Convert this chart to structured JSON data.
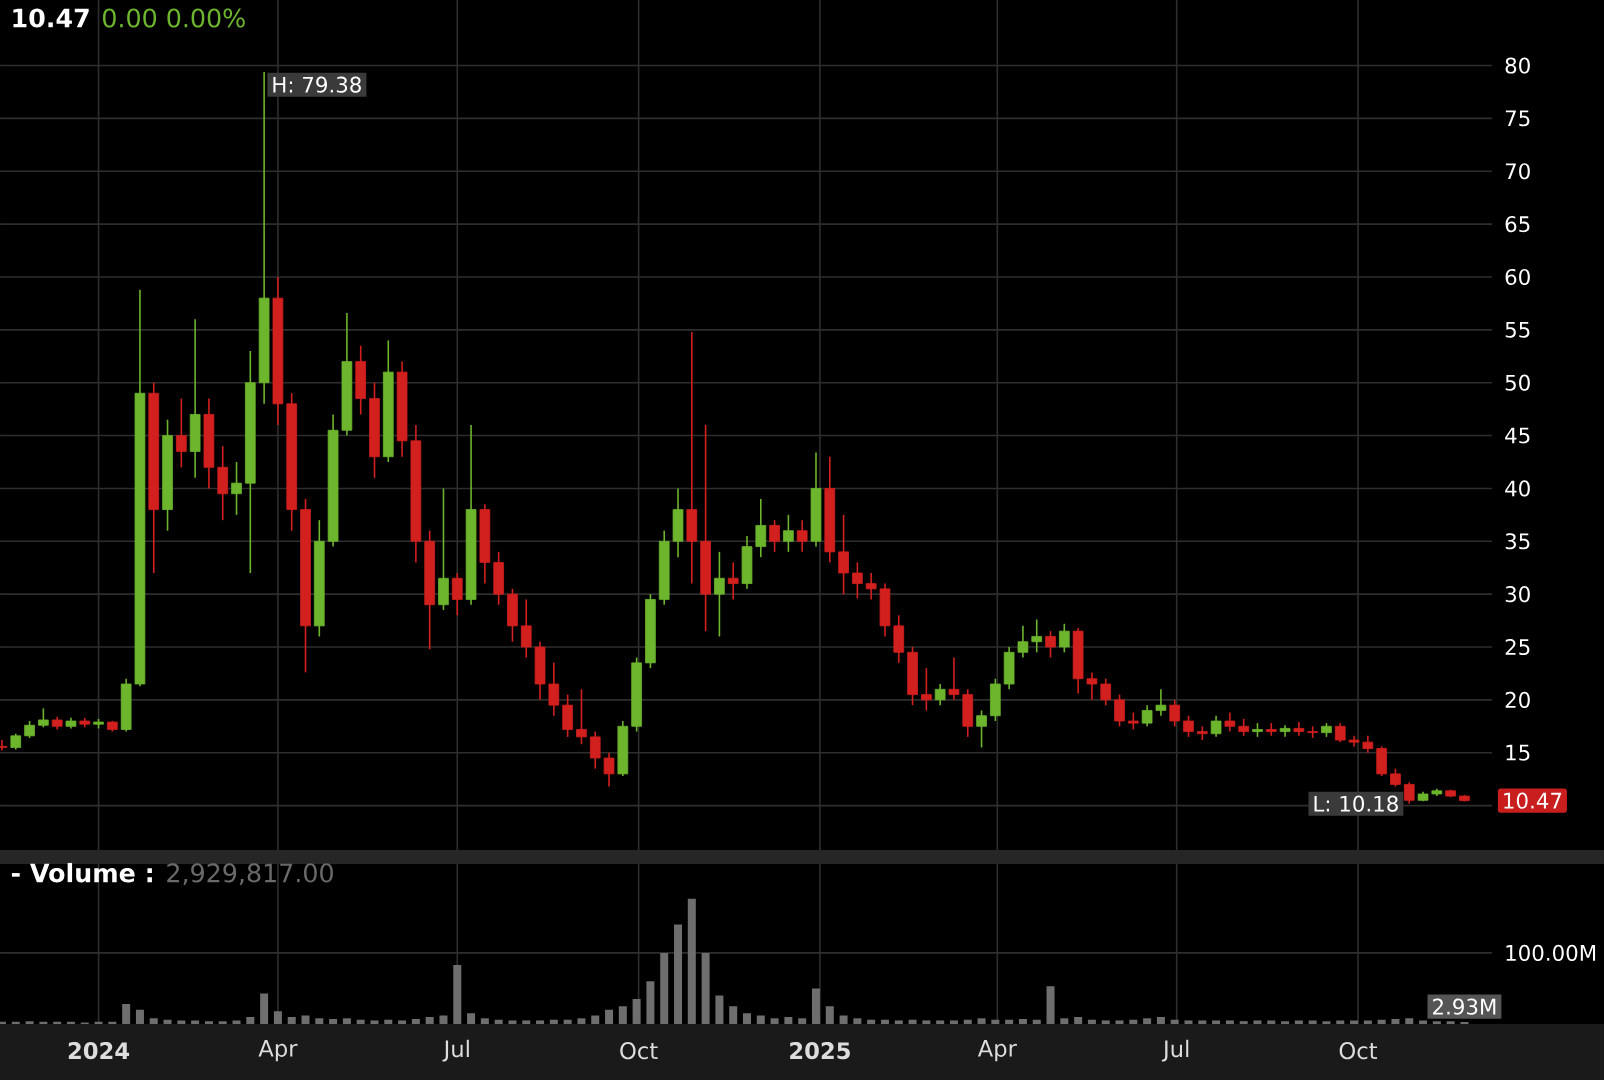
{
  "chart_data": [
    {
      "type": "candlestick",
      "title": "10.47",
      "subtitle": "0.00 0.00%",
      "x": [
        "2023-11-13",
        "2023-11-20",
        "2023-11-27",
        "2023-12-04",
        "2023-12-11",
        "2023-12-18",
        "2023-12-25",
        "2024-01-01",
        "2024-01-08",
        "2024-01-15",
        "2024-01-22",
        "2024-01-29",
        "2024-02-05",
        "2024-02-12",
        "2024-02-19",
        "2024-02-26",
        "2024-03-04",
        "2024-03-11",
        "2024-03-18",
        "2024-03-25",
        "2024-04-01",
        "2024-04-08",
        "2024-04-15",
        "2024-04-22",
        "2024-04-29",
        "2024-05-06",
        "2024-05-13",
        "2024-05-20",
        "2024-05-27",
        "2024-06-03",
        "2024-06-10",
        "2024-06-17",
        "2024-06-24",
        "2024-07-01",
        "2024-07-08",
        "2024-07-15",
        "2024-07-22",
        "2024-07-29",
        "2024-08-05",
        "2024-08-12",
        "2024-08-19",
        "2024-08-26",
        "2024-09-02",
        "2024-09-09",
        "2024-09-16",
        "2024-09-23",
        "2024-09-30",
        "2024-10-07",
        "2024-10-14",
        "2024-10-21",
        "2024-10-28",
        "2024-11-04",
        "2024-11-11",
        "2024-11-18",
        "2024-11-25",
        "2024-12-02",
        "2024-12-09",
        "2024-12-16",
        "2024-12-23",
        "2024-12-30",
        "2025-01-06",
        "2025-01-13",
        "2025-01-20",
        "2025-01-27",
        "2025-02-03",
        "2025-02-10",
        "2025-02-17",
        "2025-02-24",
        "2025-03-03",
        "2025-03-10",
        "2025-03-17",
        "2025-03-24",
        "2025-03-31",
        "2025-04-07",
        "2025-04-14",
        "2025-04-21",
        "2025-04-28",
        "2025-05-05",
        "2025-05-12",
        "2025-05-19",
        "2025-05-26",
        "2025-06-02",
        "2025-06-09",
        "2025-06-16",
        "2025-06-23",
        "2025-06-30",
        "2025-07-07",
        "2025-07-14",
        "2025-07-21",
        "2025-07-28",
        "2025-08-04",
        "2025-08-11",
        "2025-08-18",
        "2025-08-25",
        "2025-09-01",
        "2025-09-08",
        "2025-09-15",
        "2025-09-22",
        "2025-09-29",
        "2025-10-06",
        "2025-10-13",
        "2025-10-20",
        "2025-10-27",
        "2025-11-03",
        "2025-11-10",
        "2025-11-17",
        "2025-11-24"
      ],
      "ohlc": [
        [
          15.6,
          16.2,
          15.2,
          15.5
        ],
        [
          15.5,
          16.8,
          15.3,
          16.6
        ],
        [
          16.6,
          18.0,
          16.4,
          17.6
        ],
        [
          17.6,
          19.2,
          17.4,
          18.1
        ],
        [
          18.1,
          18.4,
          17.2,
          17.5
        ],
        [
          17.5,
          18.3,
          17.3,
          18.0
        ],
        [
          18.0,
          18.3,
          17.4,
          17.7
        ],
        [
          17.7,
          18.2,
          17.3,
          17.9
        ],
        [
          17.9,
          18.0,
          17.0,
          17.2
        ],
        [
          17.2,
          22.0,
          17.0,
          21.5
        ],
        [
          21.5,
          58.8,
          21.3,
          49.0
        ],
        [
          49.0,
          50.0,
          32.0,
          38.0
        ],
        [
          38.0,
          46.5,
          36.0,
          45.0
        ],
        [
          45.0,
          48.5,
          42.0,
          43.5
        ],
        [
          43.5,
          56.0,
          41.0,
          47.0
        ],
        [
          47.0,
          48.5,
          40.0,
          42.0
        ],
        [
          42.0,
          44.0,
          37.0,
          39.5
        ],
        [
          39.5,
          42.5,
          37.5,
          40.5
        ],
        [
          40.5,
          53.0,
          32.0,
          50.0
        ],
        [
          50.0,
          79.38,
          48.0,
          58.0
        ],
        [
          58.0,
          60.0,
          46.0,
          48.0
        ],
        [
          48.0,
          49.0,
          36.0,
          38.0
        ],
        [
          38.0,
          39.0,
          22.6,
          27.0
        ],
        [
          27.0,
          37.0,
          26.0,
          35.0
        ],
        [
          35.0,
          47.0,
          34.5,
          45.5
        ],
        [
          45.5,
          56.6,
          45.0,
          52.0
        ],
        [
          52.0,
          53.5,
          47.0,
          48.5
        ],
        [
          48.5,
          50.0,
          41.0,
          43.0
        ],
        [
          43.0,
          54.0,
          42.5,
          51.0
        ],
        [
          51.0,
          52.0,
          43.0,
          44.5
        ],
        [
          44.5,
          46.0,
          33.0,
          35.0
        ],
        [
          35.0,
          36.0,
          24.8,
          29.0
        ],
        [
          29.0,
          40.0,
          28.5,
          31.5
        ],
        [
          31.5,
          32.0,
          28.0,
          29.5
        ],
        [
          29.5,
          46.0,
          29.0,
          38.0
        ],
        [
          38.0,
          38.5,
          31.0,
          33.0
        ],
        [
          33.0,
          34.0,
          29.0,
          30.0
        ],
        [
          30.0,
          30.5,
          25.5,
          27.0
        ],
        [
          27.0,
          29.5,
          24.0,
          25.0
        ],
        [
          25.0,
          25.5,
          20.0,
          21.5
        ],
        [
          21.5,
          23.5,
          18.5,
          19.5
        ],
        [
          19.5,
          20.5,
          16.5,
          17.2
        ],
        [
          17.2,
          21.0,
          15.8,
          16.5
        ],
        [
          16.5,
          17.0,
          13.5,
          14.5
        ],
        [
          14.5,
          15.0,
          11.8,
          13.0
        ],
        [
          13.0,
          18.0,
          12.8,
          17.5
        ],
        [
          17.5,
          24.0,
          17.0,
          23.5
        ],
        [
          23.5,
          30.0,
          23.0,
          29.5
        ],
        [
          29.5,
          36.0,
          29.0,
          35.0
        ],
        [
          35.0,
          40.0,
          33.5,
          38.0
        ],
        [
          38.0,
          54.8,
          31.0,
          35.0
        ],
        [
          35.0,
          46.0,
          26.5,
          30.0
        ],
        [
          30.0,
          34.0,
          26.0,
          31.5
        ],
        [
          31.5,
          33.0,
          29.5,
          31.0
        ],
        [
          31.0,
          35.5,
          30.5,
          34.5
        ],
        [
          34.5,
          39.0,
          33.5,
          36.5
        ],
        [
          36.5,
          37.0,
          34.0,
          35.0
        ],
        [
          35.0,
          37.5,
          34.0,
          36.0
        ],
        [
          36.0,
          37.0,
          34.0,
          35.0
        ],
        [
          35.0,
          43.4,
          34.5,
          40.0
        ],
        [
          40.0,
          43.0,
          33.0,
          34.0
        ],
        [
          34.0,
          37.5,
          30.0,
          32.0
        ],
        [
          32.0,
          33.0,
          29.6,
          31.0
        ],
        [
          31.0,
          32.0,
          29.5,
          30.5
        ],
        [
          30.5,
          31.0,
          26.0,
          27.0
        ],
        [
          27.0,
          28.0,
          23.5,
          24.5
        ],
        [
          24.5,
          25.0,
          19.5,
          20.5
        ],
        [
          20.5,
          23.0,
          19.0,
          20.0
        ],
        [
          20.0,
          21.5,
          19.5,
          21.0
        ],
        [
          21.0,
          24.0,
          20.0,
          20.5
        ],
        [
          20.5,
          21.0,
          16.5,
          17.5
        ],
        [
          17.5,
          19.0,
          15.5,
          18.5
        ],
        [
          18.5,
          22.0,
          18.0,
          21.5
        ],
        [
          21.5,
          25.0,
          21.0,
          24.5
        ],
        [
          24.5,
          27.0,
          24.0,
          25.5
        ],
        [
          25.5,
          27.6,
          24.5,
          26.0
        ],
        [
          26.0,
          26.5,
          24.0,
          25.0
        ],
        [
          25.0,
          27.2,
          24.5,
          26.5
        ],
        [
          26.5,
          26.8,
          20.6,
          22.0
        ],
        [
          22.0,
          22.6,
          20.0,
          21.5
        ],
        [
          21.5,
          22.0,
          19.5,
          20.0
        ],
        [
          20.0,
          20.5,
          17.5,
          18.0
        ],
        [
          18.0,
          18.8,
          17.2,
          17.8
        ],
        [
          17.8,
          19.5,
          17.5,
          19.0
        ],
        [
          19.0,
          21.0,
          18.5,
          19.5
        ],
        [
          19.5,
          20.0,
          17.5,
          18.0
        ],
        [
          18.0,
          18.5,
          16.5,
          17.0
        ],
        [
          17.0,
          17.5,
          16.2,
          16.8
        ],
        [
          16.8,
          18.5,
          16.5,
          18.0
        ],
        [
          18.0,
          18.8,
          17.0,
          17.5
        ],
        [
          17.5,
          18.2,
          16.6,
          17.0
        ],
        [
          17.0,
          17.8,
          16.5,
          17.2
        ],
        [
          17.2,
          17.8,
          16.6,
          17.0
        ],
        [
          17.0,
          17.6,
          16.5,
          17.3
        ],
        [
          17.3,
          17.9,
          16.6,
          17.0
        ],
        [
          17.0,
          17.5,
          16.4,
          16.9
        ],
        [
          16.9,
          17.8,
          16.5,
          17.5
        ],
        [
          17.5,
          17.8,
          16.0,
          16.2
        ],
        [
          16.2,
          16.6,
          15.6,
          16.0
        ],
        [
          16.0,
          16.6,
          15.0,
          15.4
        ],
        [
          15.4,
          15.6,
          12.8,
          13.0
        ],
        [
          13.0,
          13.5,
          11.8,
          12.0
        ],
        [
          12.0,
          12.2,
          10.18,
          10.5
        ],
        [
          10.5,
          11.3,
          10.4,
          11.1
        ],
        [
          11.1,
          11.6,
          10.9,
          11.4
        ],
        [
          11.4,
          11.5,
          10.8,
          10.9
        ],
        [
          10.9,
          11.0,
          10.4,
          10.47
        ]
      ],
      "colors": [
        "#d2201e",
        "#6cb52d",
        "#6cb52d",
        "#6cb52d",
        "#d2201e",
        "#6cb52d",
        "#d2201e",
        "#6cb52d",
        "#d2201e",
        "#6cb52d",
        "#6cb52d",
        "#d2201e",
        "#6cb52d",
        "#d2201e",
        "#6cb52d",
        "#d2201e",
        "#d2201e",
        "#6cb52d",
        "#6cb52d",
        "#6cb52d",
        "#d2201e",
        "#d2201e",
        "#d2201e",
        "#6cb52d",
        "#6cb52d",
        "#6cb52d",
        "#d2201e",
        "#d2201e",
        "#6cb52d",
        "#d2201e",
        "#d2201e",
        "#d2201e",
        "#6cb52d",
        "#d2201e",
        "#6cb52d",
        "#d2201e",
        "#d2201e",
        "#d2201e",
        "#d2201e",
        "#d2201e",
        "#d2201e",
        "#d2201e",
        "#d2201e",
        "#d2201e",
        "#d2201e",
        "#6cb52d",
        "#6cb52d",
        "#6cb52d",
        "#6cb52d",
        "#6cb52d",
        "#d2201e",
        "#d2201e",
        "#6cb52d",
        "#d2201e",
        "#6cb52d",
        "#6cb52d",
        "#d2201e",
        "#6cb52d",
        "#d2201e",
        "#6cb52d",
        "#d2201e",
        "#d2201e",
        "#d2201e",
        "#d2201e",
        "#d2201e",
        "#d2201e",
        "#d2201e",
        "#d2201e",
        "#6cb52d",
        "#d2201e",
        "#d2201e",
        "#6cb52d",
        "#6cb52d",
        "#6cb52d",
        "#6cb52d",
        "#6cb52d",
        "#d2201e",
        "#6cb52d",
        "#d2201e",
        "#d2201e",
        "#d2201e",
        "#d2201e",
        "#d2201e",
        "#6cb52d",
        "#6cb52d",
        "#d2201e",
        "#d2201e",
        "#d2201e",
        "#6cb52d",
        "#d2201e",
        "#d2201e",
        "#6cb52d",
        "#d2201e",
        "#6cb52d",
        "#d2201e",
        "#d2201e",
        "#6cb52d",
        "#d2201e",
        "#d2201e",
        "#d2201e",
        "#d2201e",
        "#d2201e",
        "#d2201e",
        "#6cb52d",
        "#6cb52d",
        "#d2201e",
        "#d2201e"
      ],
      "xlim": [
        "2023-11-12",
        "2025-12-08"
      ],
      "xticks": [
        {
          "value": "2024-01-01",
          "label": null
        },
        {
          "value": "2024-04-01",
          "label": null
        },
        {
          "value": "2024-07-01",
          "label": null
        },
        {
          "value": "2024-10-01",
          "label": null
        },
        {
          "value": "2025-01-01",
          "label": null
        },
        {
          "value": "2025-04-01",
          "label": null
        },
        {
          "value": "2025-07-01",
          "label": null
        },
        {
          "value": "2025-10-01",
          "label": null
        }
      ],
      "ylim": [
        5.8,
        86.2
      ],
      "yticks": [
        {
          "value": 10,
          "label": null
        },
        15,
        20,
        25,
        30,
        35,
        40,
        45,
        50,
        55,
        60,
        65,
        70,
        75,
        80
      ],
      "tick_labels": "y",
      "grid": true,
      "annotations": [
        {
          "text": "H: 79.38",
          "x": "2024-03-25",
          "y": 79.38
        },
        {
          "text": "L: 10.18",
          "x": "2025-10-27",
          "y": 10.18
        },
        {
          "text": "10.47",
          "x": "2025-11-24",
          "y": 10.47
        }
      ]
    },
    {
      "type": "bar",
      "title": "- Volume :",
      "subtitle": "2,929,817.00",
      "color": "#6e6e6e",
      "x": [
        "2023-11-13",
        "2023-11-20",
        "2023-11-27",
        "2023-12-04",
        "2023-12-11",
        "2023-12-18",
        "2023-12-25",
        "2024-01-01",
        "2024-01-08",
        "2024-01-15",
        "2024-01-22",
        "2024-01-29",
        "2024-02-05",
        "2024-02-12",
        "2024-02-19",
        "2024-02-26",
        "2024-03-04",
        "2024-03-11",
        "2024-03-18",
        "2024-03-25",
        "2024-04-01",
        "2024-04-08",
        "2024-04-15",
        "2024-04-22",
        "2024-04-29",
        "2024-05-06",
        "2024-05-13",
        "2024-05-20",
        "2024-05-27",
        "2024-06-03",
        "2024-06-10",
        "2024-06-17",
        "2024-06-24",
        "2024-07-01",
        "2024-07-08",
        "2024-07-15",
        "2024-07-22",
        "2024-07-29",
        "2024-08-05",
        "2024-08-12",
        "2024-08-19",
        "2024-08-26",
        "2024-09-02",
        "2024-09-09",
        "2024-09-16",
        "2024-09-23",
        "2024-09-30",
        "2024-10-07",
        "2024-10-14",
        "2024-10-21",
        "2024-10-28",
        "2024-11-04",
        "2024-11-11",
        "2024-11-18",
        "2024-11-25",
        "2024-12-02",
        "2024-12-09",
        "2024-12-16",
        "2024-12-23",
        "2024-12-30",
        "2025-01-06",
        "2025-01-13",
        "2025-01-20",
        "2025-01-27",
        "2025-02-03",
        "2025-02-10",
        "2025-02-17",
        "2025-02-24",
        "2025-03-03",
        "2025-03-10",
        "2025-03-17",
        "2025-03-24",
        "2025-03-31",
        "2025-04-07",
        "2025-04-14",
        "2025-04-21",
        "2025-04-28",
        "2025-05-05",
        "2025-05-12",
        "2025-05-19",
        "2025-05-26",
        "2025-06-02",
        "2025-06-09",
        "2025-06-16",
        "2025-06-23",
        "2025-06-30",
        "2025-07-07",
        "2025-07-14",
        "2025-07-21",
        "2025-07-28",
        "2025-08-04",
        "2025-08-11",
        "2025-08-18",
        "2025-08-25",
        "2025-09-01",
        "2025-09-08",
        "2025-09-15",
        "2025-09-22",
        "2025-09-29",
        "2025-10-06",
        "2025-10-13",
        "2025-10-20",
        "2025-10-27",
        "2025-11-03",
        "2025-11-10",
        "2025-11-17",
        "2025-11-24"
      ],
      "values": [
        3,
        3,
        4,
        3,
        3,
        3,
        2,
        3,
        3,
        28,
        20,
        8,
        6,
        5,
        5,
        4,
        4,
        5,
        10,
        43,
        18,
        10,
        12,
        8,
        7,
        8,
        6,
        5,
        6,
        5,
        7,
        10,
        12,
        83,
        15,
        8,
        6,
        5,
        5,
        5,
        6,
        6,
        8,
        12,
        20,
        25,
        35,
        60,
        100,
        140,
        176,
        100,
        40,
        25,
        15,
        12,
        8,
        10,
        8,
        50,
        25,
        12,
        8,
        6,
        6,
        5,
        6,
        5,
        5,
        5,
        6,
        8,
        6,
        6,
        7,
        6,
        53,
        8,
        10,
        6,
        5,
        5,
        6,
        8,
        10,
        6,
        5,
        5,
        5,
        5,
        4,
        5,
        5,
        4,
        5,
        5,
        4,
        5,
        5,
        5,
        6,
        7,
        8,
        5,
        4,
        4,
        2.93
      ],
      "value_labels": [
        null,
        null,
        null,
        null,
        null,
        null,
        null,
        null,
        null,
        null,
        null,
        null,
        null,
        null,
        null,
        null,
        null,
        null,
        null,
        null,
        null,
        null,
        null,
        null,
        null,
        null,
        null,
        null,
        null,
        null,
        null,
        null,
        null,
        null,
        null,
        null,
        null,
        null,
        null,
        null,
        null,
        null,
        null,
        null,
        null,
        null,
        null,
        null,
        null,
        null,
        null,
        null,
        null,
        null,
        null,
        null,
        null,
        null,
        null,
        null,
        null,
        null,
        null,
        null,
        null,
        null,
        null,
        null,
        null,
        null,
        null,
        null,
        null,
        null,
        null,
        null,
        null,
        null,
        null,
        null,
        null,
        null,
        null,
        null,
        null,
        null,
        null,
        null,
        null,
        null,
        null,
        null,
        null,
        null,
        null,
        null,
        null,
        null,
        null,
        null,
        null,
        null,
        null,
        null,
        null,
        null,
        "2.93M"
      ],
      "xlim": [
        "2023-11-12",
        "2025-12-08"
      ],
      "xticks": [
        {
          "value": "2024-01-01",
          "label": "2024"
        },
        {
          "value": "2024-04-01",
          "label": "Apr"
        },
        {
          "value": "2024-07-01",
          "label": "Jul"
        },
        {
          "value": "2024-10-01",
          "label": "Oct"
        },
        {
          "value": "2025-01-01",
          "label": "2025"
        },
        {
          "value": "2025-04-01",
          "label": "Apr"
        },
        {
          "value": "2025-07-01",
          "label": "Jul"
        },
        {
          "value": "2025-10-01",
          "label": "Oct"
        }
      ],
      "ylim": [
        0,
        225
      ],
      "yticks": [
        {
          "value": 100,
          "label": "100.00M"
        }
      ],
      "grid": true
    }
  ]
}
